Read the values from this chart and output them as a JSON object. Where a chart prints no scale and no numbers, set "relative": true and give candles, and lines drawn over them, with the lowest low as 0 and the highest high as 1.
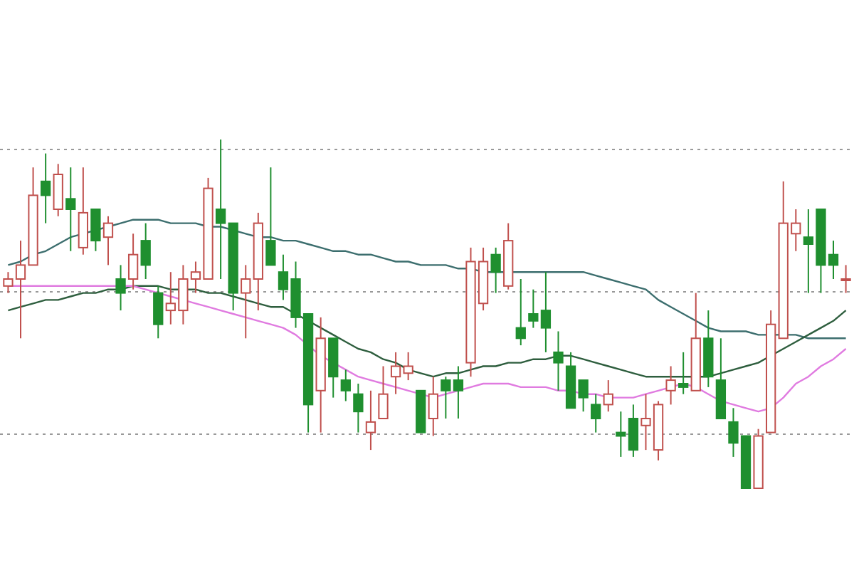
{
  "chart_data": {
    "type": "candlestick",
    "relative": true,
    "grid": true,
    "marker": "none",
    "line_style": "solid",
    "categories": [
      null,
      null,
      null,
      null,
      null,
      null,
      null,
      null,
      null,
      null,
      null,
      null,
      null,
      null,
      null,
      null,
      null,
      null,
      null,
      null,
      null,
      null,
      null,
      null,
      null,
      null,
      null,
      null,
      null,
      null,
      null,
      null,
      null,
      null,
      null,
      null,
      null,
      null,
      null,
      null,
      null,
      null,
      null,
      null,
      null,
      null,
      null,
      null,
      null,
      null,
      null,
      null,
      null,
      null,
      null,
      null,
      null,
      null,
      null,
      null,
      null,
      null,
      null,
      null,
      null,
      null,
      null,
      null
    ],
    "ohlc": [
      [
        0.58,
        0.62,
        0.56,
        0.6
      ],
      [
        0.6,
        0.71,
        0.43,
        0.64
      ],
      [
        0.64,
        0.92,
        0.64,
        0.84
      ],
      [
        0.88,
        0.96,
        0.76,
        0.84
      ],
      [
        0.8,
        0.93,
        0.78,
        0.9
      ],
      [
        0.83,
        0.92,
        0.68,
        0.8
      ],
      [
        0.69,
        0.92,
        0.67,
        0.79
      ],
      [
        0.8,
        0.8,
        0.68,
        0.71
      ],
      [
        0.72,
        0.78,
        0.64,
        0.76
      ],
      [
        0.6,
        0.64,
        0.51,
        0.56
      ],
      [
        0.6,
        0.73,
        0.57,
        0.67
      ],
      [
        0.71,
        0.76,
        0.6,
        0.64
      ],
      [
        0.56,
        0.58,
        0.43,
        0.47
      ],
      [
        0.51,
        0.62,
        0.47,
        0.53
      ],
      [
        0.51,
        0.64,
        0.47,
        0.6
      ],
      [
        0.6,
        0.65,
        0.56,
        0.62
      ],
      [
        0.6,
        0.89,
        0.6,
        0.86
      ],
      [
        0.8,
        1,
        0.6,
        0.76
      ],
      [
        0.76,
        0.76,
        0.51,
        0.56
      ],
      [
        0.56,
        0.64,
        0.43,
        0.6
      ],
      [
        0.6,
        0.79,
        0.51,
        0.76
      ],
      [
        0.71,
        0.92,
        0.64,
        0.64
      ],
      [
        0.62,
        0.67,
        0.54,
        0.57
      ],
      [
        0.6,
        0.65,
        0.46,
        0.49
      ],
      [
        0.5,
        0.5,
        0.16,
        0.24
      ],
      [
        0.28,
        0.49,
        0.16,
        0.43
      ],
      [
        0.43,
        0.43,
        0.26,
        0.32
      ],
      [
        0.31,
        0.34,
        0.25,
        0.28
      ],
      [
        0.27,
        0.3,
        0.16,
        0.22
      ],
      [
        0.16,
        0.28,
        0.11,
        0.19
      ],
      [
        0.2,
        0.35,
        0.2,
        0.27
      ],
      [
        0.32,
        0.39,
        0.27,
        0.35
      ],
      [
        0.33,
        0.39,
        0.31,
        0.35
      ],
      [
        0.28,
        0.28,
        0.16,
        0.16
      ],
      [
        0.2,
        0.32,
        0.15,
        0.27
      ],
      [
        0.31,
        0.32,
        0.2,
        0.28
      ],
      [
        0.31,
        0.35,
        0.2,
        0.28
      ],
      [
        0.36,
        0.69,
        0.32,
        0.65
      ],
      [
        0.53,
        0.69,
        0.51,
        0.65
      ],
      [
        0.67,
        0.69,
        0.56,
        0.62
      ],
      [
        0.58,
        0.76,
        0.57,
        0.71
      ],
      [
        0.46,
        0.6,
        0.41,
        0.43
      ],
      [
        0.5,
        0.57,
        0.46,
        0.48
      ],
      [
        0.51,
        0.62,
        0.39,
        0.46
      ],
      [
        0.39,
        0.45,
        0.28,
        0.36
      ],
      [
        0.35,
        0.39,
        0.23,
        0.23
      ],
      [
        0.31,
        0.31,
        0.22,
        0.26
      ],
      [
        0.24,
        0.27,
        0.16,
        0.2
      ],
      [
        0.24,
        0.31,
        0.22,
        0.27
      ],
      [
        0.16,
        0.22,
        0.09,
        0.15
      ],
      [
        0.2,
        0.24,
        0.09,
        0.11
      ],
      [
        0.18,
        0.27,
        0.11,
        0.2
      ],
      [
        0.11,
        0.25,
        0.08,
        0.24
      ],
      [
        0.28,
        0.35,
        0.24,
        0.31
      ],
      [
        0.3,
        0.39,
        0.27,
        0.29
      ],
      [
        0.28,
        0.56,
        0.28,
        0.43
      ],
      [
        0.43,
        0.51,
        0.29,
        0.32
      ],
      [
        0.31,
        0.43,
        0.2,
        0.2
      ],
      [
        0.19,
        0.23,
        0.09,
        0.13
      ],
      [
        0.15,
        0.15,
        0,
        0
      ],
      [
        0,
        0.17,
        0,
        0.15
      ],
      [
        0.16,
        0.51,
        0.16,
        0.47
      ],
      [
        0.43,
        0.88,
        0.43,
        0.76
      ],
      [
        0.73,
        0.8,
        0.68,
        0.76
      ],
      [
        0.72,
        0.8,
        0.56,
        0.7
      ],
      [
        0.8,
        0.8,
        0.56,
        0.64
      ],
      [
        0.67,
        0.71,
        0.6,
        0.64
      ],
      [
        0.6,
        0.64,
        0.56,
        0.6
      ]
    ],
    "colors": [
      "#c0504d",
      "#c0504d",
      "#c0504d",
      "#1f8f2f",
      "#c0504d",
      "#1f8f2f",
      "#c0504d",
      "#1f8f2f",
      "#c0504d",
      "#1f8f2f",
      "#c0504d",
      "#1f8f2f",
      "#1f8f2f",
      "#c0504d",
      "#c0504d",
      "#c0504d",
      "#c0504d",
      "#1f8f2f",
      "#1f8f2f",
      "#c0504d",
      "#c0504d",
      "#1f8f2f",
      "#1f8f2f",
      "#1f8f2f",
      "#1f8f2f",
      "#c0504d",
      "#1f8f2f",
      "#1f8f2f",
      "#1f8f2f",
      "#c0504d",
      "#c0504d",
      "#c0504d",
      "#c0504d",
      "#1f8f2f",
      "#c0504d",
      "#1f8f2f",
      "#1f8f2f",
      "#c0504d",
      "#c0504d",
      "#1f8f2f",
      "#c0504d",
      "#1f8f2f",
      "#1f8f2f",
      "#1f8f2f",
      "#1f8f2f",
      "#1f8f2f",
      "#1f8f2f",
      "#1f8f2f",
      "#c0504d",
      "#1f8f2f",
      "#1f8f2f",
      "#c0504d",
      "#c0504d",
      "#c0504d",
      "#1f8f2f",
      "#c0504d",
      "#1f8f2f",
      "#1f8f2f",
      "#1f8f2f",
      "#1f8f2f",
      "#c0504d",
      "#c0504d",
      "#c0504d",
      "#c0504d",
      "#1f8f2f",
      "#1f8f2f",
      "#1f8f2f",
      "#c0504d"
    ],
    "series": [
      {
        "type": "line",
        "color": "#3c6e6e",
        "values": [
          0.64,
          0.65,
          0.67,
          0.68,
          0.7,
          0.72,
          0.73,
          0.74,
          0.75,
          0.76,
          0.77,
          0.77,
          0.77,
          0.76,
          0.76,
          0.76,
          0.75,
          0.75,
          0.74,
          0.73,
          0.72,
          0.72,
          0.71,
          0.71,
          0.7,
          0.69,
          0.68,
          0.68,
          0.67,
          0.67,
          0.66,
          0.65,
          0.65,
          0.64,
          0.64,
          0.64,
          0.63,
          0.63,
          0.62,
          0.62,
          0.62,
          0.62,
          0.62,
          0.62,
          0.62,
          0.62,
          0.62,
          0.61,
          0.6,
          0.59,
          0.58,
          0.57,
          0.54,
          0.52,
          0.5,
          0.48,
          0.46,
          0.45,
          0.45,
          0.45,
          0.44,
          0.44,
          0.44,
          0.44,
          0.43,
          0.43,
          0.43,
          0.43
        ]
      },
      {
        "type": "line",
        "color": "#2e5e3e",
        "values": [
          0.51,
          0.52,
          0.53,
          0.54,
          0.54,
          0.55,
          0.56,
          0.56,
          0.57,
          0.57,
          0.58,
          0.58,
          0.58,
          0.57,
          0.57,
          0.57,
          0.56,
          0.56,
          0.55,
          0.54,
          0.53,
          0.52,
          0.52,
          0.5,
          0.48,
          0.46,
          0.44,
          0.42,
          0.4,
          0.39,
          0.37,
          0.36,
          0.34,
          0.33,
          0.32,
          0.33,
          0.33,
          0.34,
          0.35,
          0.35,
          0.36,
          0.36,
          0.37,
          0.37,
          0.38,
          0.38,
          0.37,
          0.36,
          0.35,
          0.34,
          0.33,
          0.32,
          0.32,
          0.32,
          0.32,
          0.32,
          0.32,
          0.33,
          0.34,
          0.35,
          0.36,
          0.38,
          0.4,
          0.42,
          0.44,
          0.46,
          0.48,
          0.51
        ]
      },
      {
        "type": "line",
        "color": "#e07be0",
        "values": [
          0.58,
          0.58,
          0.58,
          0.58,
          0.58,
          0.58,
          0.58,
          0.58,
          0.58,
          0.58,
          0.58,
          0.57,
          0.56,
          0.55,
          0.54,
          0.53,
          0.52,
          0.51,
          0.5,
          0.49,
          0.48,
          0.47,
          0.46,
          0.44,
          0.41,
          0.38,
          0.36,
          0.34,
          0.32,
          0.31,
          0.3,
          0.29,
          0.28,
          0.27,
          0.26,
          0.27,
          0.28,
          0.29,
          0.3,
          0.3,
          0.3,
          0.29,
          0.29,
          0.29,
          0.28,
          0.28,
          0.27,
          0.27,
          0.26,
          0.26,
          0.26,
          0.27,
          0.28,
          0.29,
          0.3,
          0.29,
          0.27,
          0.25,
          0.24,
          0.23,
          0.22,
          0.23,
          0.26,
          0.3,
          0.32,
          0.35,
          0.37,
          0.4
        ]
      }
    ]
  }
}
